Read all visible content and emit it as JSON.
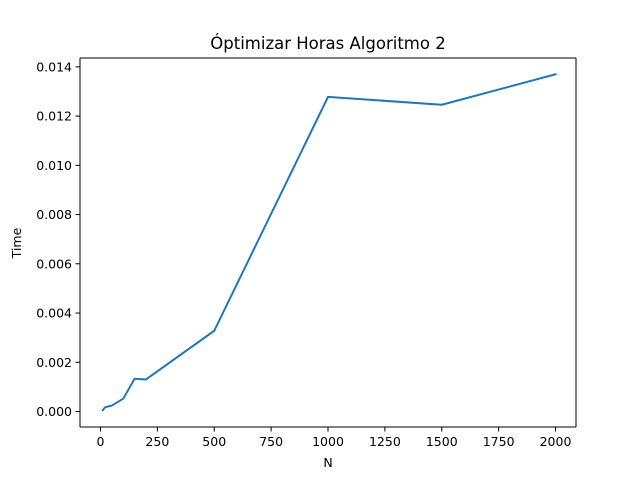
{
  "chart_data": {
    "type": "line",
    "title": "Óptimizar Horas Algoritmo 2",
    "xlabel": "N",
    "ylabel": "Time",
    "xlim": [
      -90,
      2090
    ],
    "ylim": [
      -0.00063,
      0.01436
    ],
    "xticks": [
      0,
      250,
      500,
      750,
      1000,
      1250,
      1500,
      1750,
      2000
    ],
    "xtick_labels": [
      "0",
      "250",
      "500",
      "750",
      "1000",
      "1250",
      "1500",
      "1750",
      "2000"
    ],
    "yticks": [
      0.0,
      0.002,
      0.004,
      0.006,
      0.008,
      0.01,
      0.012,
      0.014
    ],
    "ytick_labels": [
      "0.000",
      "0.002",
      "0.004",
      "0.006",
      "0.008",
      "0.010",
      "0.012",
      "0.014"
    ],
    "grid": false,
    "series": [
      {
        "color": "#1f77b4",
        "x": [
          10,
          20,
          50,
          100,
          150,
          200,
          500,
          1000,
          1500,
          2000
        ],
        "y": [
          5e-05,
          0.00017,
          0.00024,
          0.00052,
          0.00133,
          0.0013,
          0.00328,
          0.01278,
          0.01246,
          0.0137
        ]
      }
    ]
  }
}
